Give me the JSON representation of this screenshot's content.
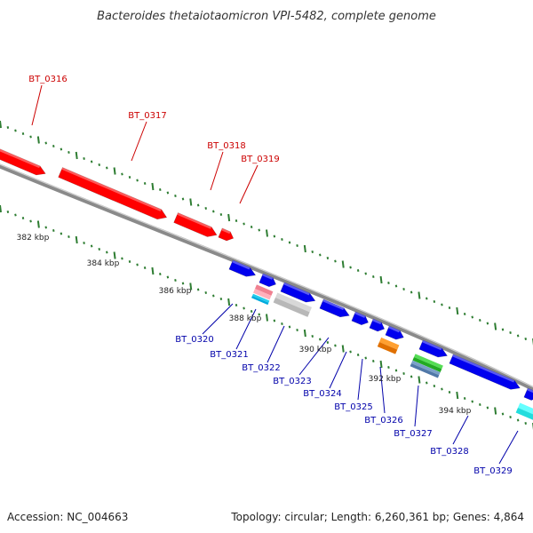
{
  "title": "Bacteroides thetaiotaomicron VPI-5482, complete genome",
  "footer": {
    "accession": "Accession: NC_004663",
    "summary": "Topology: circular; Length: 6,260,361 bp; Genes: 4,864"
  },
  "colors": {
    "forward_label": "#cc0000",
    "reverse_label": "#0000aa",
    "backbone": "#888888",
    "tick": "#2e7d32",
    "forward_gene": "#ff0000",
    "reverse_gene": "#0000ee"
  },
  "scale_labels": [
    {
      "text": "382 kbp"
    },
    {
      "text": "384 kbp"
    },
    {
      "text": "386 kbp"
    },
    {
      "text": "388 kbp"
    },
    {
      "text": "390 kbp"
    },
    {
      "text": "392 kbp"
    },
    {
      "text": "394 kbp"
    }
  ],
  "genes_forward": [
    {
      "name": "BT_0316"
    },
    {
      "name": "BT_0317"
    },
    {
      "name": "BT_0318"
    },
    {
      "name": "BT_0319"
    }
  ],
  "genes_reverse": [
    {
      "name": "BT_0320"
    },
    {
      "name": "BT_0321"
    },
    {
      "name": "BT_0322"
    },
    {
      "name": "BT_0323"
    },
    {
      "name": "BT_0324"
    },
    {
      "name": "BT_0325"
    },
    {
      "name": "BT_0326"
    },
    {
      "name": "BT_0327"
    },
    {
      "name": "BT_0328"
    },
    {
      "name": "BT_0329"
    }
  ]
}
